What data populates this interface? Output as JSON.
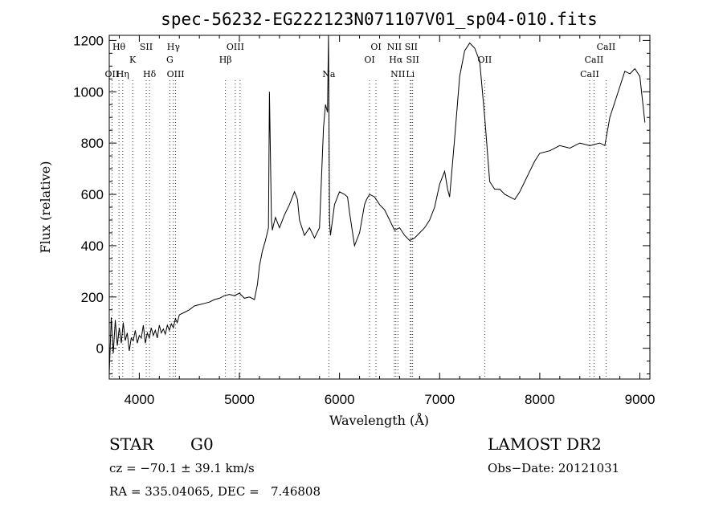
{
  "chart_data": {
    "type": "line",
    "title": "spec-56232-EG222123N071107V01_sp04-010.fits",
    "xlabel": "Wavelength (Å)",
    "ylabel": "Flux (relative)",
    "xlim": [
      3700,
      9100
    ],
    "ylim": [
      -120,
      1220
    ],
    "xticks": [
      4000,
      5000,
      6000,
      7000,
      8000,
      9000
    ],
    "yticks": [
      0,
      200,
      400,
      600,
      800,
      1000,
      1200
    ],
    "grid": false,
    "series": [
      {
        "x": [
          3700,
          3720,
          3740,
          3760,
          3780,
          3800,
          3820,
          3840,
          3860,
          3880,
          3900,
          3920,
          3940,
          3960,
          3980,
          4000,
          4020,
          4040,
          4060,
          4080,
          4100,
          4120,
          4140,
          4160,
          4180,
          4200,
          4220,
          4240,
          4260,
          4280,
          4300,
          4320,
          4340,
          4360,
          4380,
          4400,
          4450,
          4500,
          4550,
          4600,
          4650,
          4700,
          4750,
          4800,
          4850,
          4900,
          4950,
          5000,
          5050,
          5100,
          5150,
          5180,
          5200,
          5230,
          5260,
          5290,
          5300,
          5320,
          5330,
          5340,
          5360,
          5380,
          5400,
          5450,
          5500,
          5550,
          5580,
          5600,
          5650,
          5700,
          5750,
          5800,
          5840,
          5860,
          5880,
          5890,
          5900,
          5910,
          5950,
          6000,
          6050,
          6080,
          6100,
          6150,
          6200,
          6250,
          6270,
          6300,
          6350,
          6400,
          6450,
          6500,
          6550,
          6600,
          6650,
          6700,
          6750,
          6800,
          6850,
          6900,
          6950,
          7000,
          7050,
          7080,
          7100,
          7150,
          7200,
          7250,
          7300,
          7350,
          7400,
          7450,
          7500,
          7550,
          7600,
          7650,
          7700,
          7750,
          7800,
          7850,
          7900,
          7950,
          8000,
          8100,
          8200,
          8300,
          8400,
          8500,
          8600,
          8650,
          8700,
          8750,
          8800,
          8850,
          8900,
          8950,
          9000,
          9050
        ],
        "y": [
          -100,
          120,
          -20,
          110,
          10,
          80,
          20,
          100,
          30,
          60,
          -10,
          40,
          30,
          70,
          20,
          50,
          40,
          90,
          20,
          60,
          40,
          80,
          50,
          70,
          40,
          90,
          60,
          75,
          55,
          90,
          70,
          95,
          80,
          115,
          100,
          130,
          140,
          150,
          165,
          170,
          175,
          180,
          190,
          195,
          205,
          210,
          205,
          215,
          195,
          200,
          190,
          250,
          320,
          380,
          420,
          470,
          1000,
          500,
          460,
          480,
          510,
          490,
          470,
          520,
          560,
          610,
          580,
          500,
          440,
          470,
          430,
          470,
          860,
          950,
          920,
          1220,
          500,
          440,
          560,
          610,
          600,
          590,
          530,
          400,
          450,
          560,
          580,
          600,
          590,
          560,
          540,
          500,
          460,
          470,
          440,
          420,
          430,
          450,
          470,
          500,
          550,
          640,
          690,
          620,
          590,
          820,
          1060,
          1160,
          1190,
          1170,
          1120,
          900,
          650,
          620,
          620,
          600,
          590,
          580,
          610,
          650,
          690,
          730,
          760,
          770,
          790,
          780,
          800,
          790,
          800,
          790,
          900,
          960,
          1020,
          1080,
          1070,
          1090,
          1060,
          880
        ],
        "color": "#000000"
      }
    ],
    "annotations": [
      {
        "x": 3797,
        "labels": [
          "Hθ"
        ],
        "row": 0
      },
      {
        "x": 3727,
        "labels": [
          "OII"
        ],
        "row": 2
      },
      {
        "x": 3835,
        "labels": [
          "Hη"
        ],
        "row": 2
      },
      {
        "x": 3934,
        "labels": [
          "K"
        ],
        "row": 1
      },
      {
        "x": 4069,
        "labels": [
          "SII"
        ],
        "row": 0
      },
      {
        "x": 4102,
        "labels": [
          "Hδ"
        ],
        "row": 2
      },
      {
        "x": 4305,
        "labels": [
          "G"
        ],
        "row": 1
      },
      {
        "x": 4341,
        "labels": [
          "Hγ"
        ],
        "row": 0
      },
      {
        "x": 4363,
        "labels": [
          "OIII"
        ],
        "row": 2
      },
      {
        "x": 4861,
        "labels": [
          "Hβ"
        ],
        "row": 1
      },
      {
        "x": 4959,
        "labels": [
          "OIII"
        ],
        "row": 0
      },
      {
        "x": 5007,
        "labels": [],
        "row": 0
      },
      {
        "x": 5893,
        "labels": [
          "Na"
        ],
        "row": 2
      },
      {
        "x": 6300,
        "labels": [
          "OI"
        ],
        "row": 1
      },
      {
        "x": 6364,
        "labels": [
          "OI"
        ],
        "row": 0
      },
      {
        "x": 6548,
        "labels": [
          "NII"
        ],
        "row": 0
      },
      {
        "x": 6563,
        "labels": [
          "Hα"
        ],
        "row": 1
      },
      {
        "x": 6583,
        "labels": [
          "NII"
        ],
        "row": 2
      },
      {
        "x": 6707,
        "labels": [
          "Li"
        ],
        "row": 2
      },
      {
        "x": 6716,
        "labels": [
          "SII"
        ],
        "row": 0
      },
      {
        "x": 6731,
        "labels": [
          "SII"
        ],
        "row": 1
      },
      {
        "x": 7450,
        "labels": [
          "OII"
        ],
        "row": 1
      },
      {
        "x": 8498,
        "labels": [
          "CaII"
        ],
        "row": 2
      },
      {
        "x": 8542,
        "labels": [
          "CaII"
        ],
        "row": 1
      },
      {
        "x": 8662,
        "labels": [
          "CaII"
        ],
        "row": 0
      }
    ]
  },
  "info": {
    "object_class": "STAR",
    "subclass": "G0",
    "survey": "LAMOST DR2",
    "redshift": "cz = −70.1 ± 39.1 km/s",
    "obs_date": "Obs−Date: 20121031",
    "coords": "RA = 335.04065, DEC =   7.46808"
  }
}
